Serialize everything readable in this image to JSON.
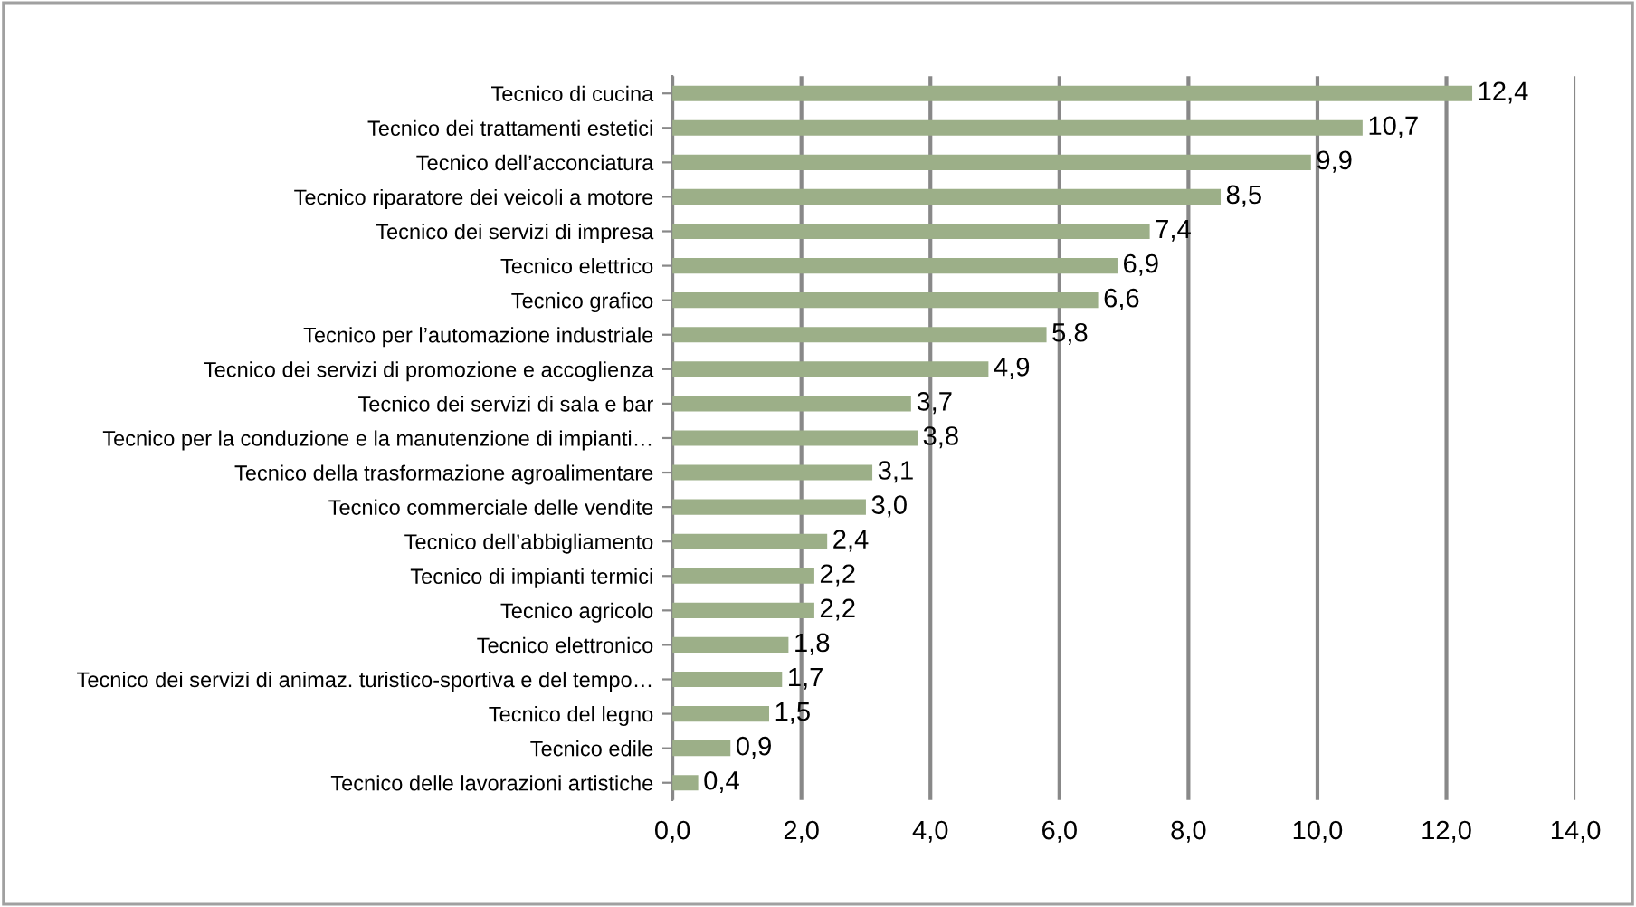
{
  "chart_data": {
    "type": "bar",
    "orientation": "horizontal",
    "categories": [
      "Tecnico di cucina",
      "Tecnico dei trattamenti estetici",
      "Tecnico dell’acconciatura",
      "Tecnico riparatore dei veicoli a motore",
      "Tecnico dei servizi di impresa",
      "Tecnico elettrico",
      "Tecnico grafico",
      "Tecnico per l’automazione industriale",
      "Tecnico dei servizi di promozione e accoglienza",
      "Tecnico dei servizi di sala e bar",
      "Tecnico per la conduzione e la manutenzione di impianti…",
      "Tecnico della trasformazione agroalimentare",
      "Tecnico commerciale delle vendite",
      "Tecnico dell’abbigliamento",
      "Tecnico di impianti termici",
      "Tecnico agricolo",
      "Tecnico elettronico",
      "Tecnico dei servizi di animaz. turistico-sportiva e del tempo…",
      "Tecnico del legno",
      "Tecnico edile",
      "Tecnico delle lavorazioni artistiche"
    ],
    "values": [
      12.4,
      10.7,
      9.9,
      8.5,
      7.4,
      6.9,
      6.6,
      5.8,
      4.9,
      3.7,
      3.8,
      3.1,
      3.0,
      2.4,
      2.2,
      2.2,
      1.8,
      1.7,
      1.5,
      0.9,
      0.4
    ],
    "value_labels": [
      "12,4",
      "10,7",
      "9,9",
      "8,5",
      "7,4",
      "6,9",
      "6,6",
      "5,8",
      "4,9",
      "3,7",
      "3,8",
      "3,1",
      "3,0",
      "2,4",
      "2,2",
      "2,2",
      "1,8",
      "1,7",
      "1,5",
      "0,9",
      "0,4"
    ],
    "color": "#9caf88",
    "xlim": [
      0,
      14
    ],
    "xticks": [
      {
        "value": 0,
        "label": "0,0"
      },
      {
        "value": 2,
        "label": "2,0"
      },
      {
        "value": 4,
        "label": "4,0"
      },
      {
        "value": 6,
        "label": "6,0"
      },
      {
        "value": 8,
        "label": "8,0"
      },
      {
        "value": 10,
        "label": "10,0"
      },
      {
        "value": 12,
        "label": "12,0"
      },
      {
        "value": 14,
        "label": "14,0"
      }
    ],
    "grid": "x"
  }
}
